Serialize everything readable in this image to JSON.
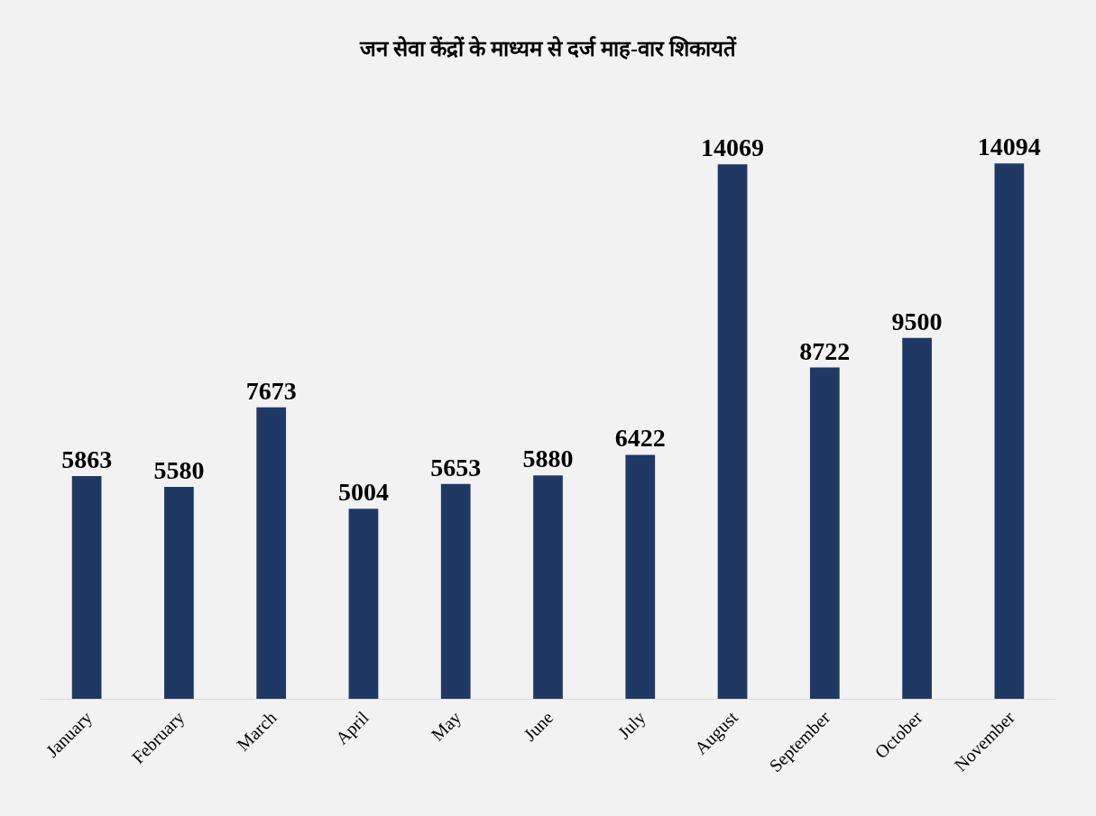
{
  "chart_data": {
    "type": "bar",
    "title": "जन सेवा केंद्रों के माध्यम से दर्ज माह-वार शिकायतें",
    "categories": [
      "January",
      "February",
      "March",
      "April",
      "May",
      "June",
      "July",
      "August",
      "September",
      "October",
      "November"
    ],
    "values": [
      5863,
      5580,
      7673,
      5004,
      5653,
      5880,
      6422,
      14069,
      8722,
      9500,
      14094
    ],
    "color": "#203864",
    "data_labels": true
  }
}
